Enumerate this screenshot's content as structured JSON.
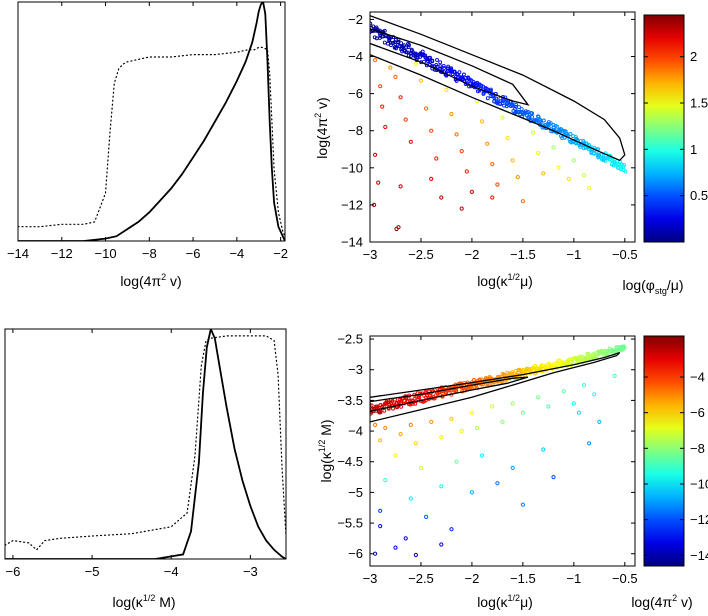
{
  "chart_data": [
    {
      "id": "p1",
      "type": "line",
      "xlabel": "log(4π² v)",
      "xlabel_parts": {
        "pre": "log(4π",
        "sup": "2",
        "post": " v)"
      },
      "xlim": [
        -14,
        -1.8
      ],
      "ylim": [
        0,
        1
      ],
      "xticks": [
        -14,
        -12,
        -10,
        -8,
        -6,
        -4,
        -2
      ],
      "yticks_shown": false,
      "series": [
        {
          "name": "solid",
          "style": "solid",
          "x": [
            -14,
            -11,
            -10,
            -9.5,
            -9,
            -8.5,
            -8,
            -7.5,
            -7,
            -6.5,
            -6,
            -5.5,
            -5,
            -4.5,
            -4,
            -3.6,
            -3.3,
            -3.1,
            -3.0,
            -2.9,
            -2.8,
            -2.7,
            -2.6,
            -2.5,
            -2.4,
            -2.3,
            -2.1,
            -1.9,
            -1.8
          ],
          "y": [
            0.0,
            0.0,
            0.01,
            0.02,
            0.05,
            0.08,
            0.12,
            0.17,
            0.22,
            0.28,
            0.35,
            0.42,
            0.5,
            0.58,
            0.67,
            0.75,
            0.83,
            0.91,
            0.96,
            0.99,
            1.0,
            0.95,
            0.75,
            0.5,
            0.3,
            0.16,
            0.06,
            0.02,
            0.0
          ]
        },
        {
          "name": "dotted",
          "style": "dotted",
          "x": [
            -14,
            -13,
            -12,
            -11,
            -10.5,
            -10,
            -9.8,
            -9.6,
            -9.4,
            -9.2,
            -9.0,
            -8.5,
            -8,
            -7,
            -6,
            -5,
            -4,
            -3.5,
            -3.2,
            -3.0,
            -2.8,
            -2.6,
            -2.5,
            -2.4,
            -2.3,
            -2.1,
            -1.9,
            -1.8
          ],
          "y": [
            0.06,
            0.06,
            0.07,
            0.07,
            0.08,
            0.2,
            0.45,
            0.66,
            0.72,
            0.74,
            0.75,
            0.76,
            0.77,
            0.77,
            0.78,
            0.78,
            0.79,
            0.8,
            0.8,
            0.81,
            0.81,
            0.8,
            0.7,
            0.5,
            0.3,
            0.12,
            0.04,
            0.02
          ]
        }
      ]
    },
    {
      "id": "p2",
      "type": "scatter",
      "xlabel": "log(κ^1/2 μ)",
      "xlabel_parts": {
        "pre": "log(κ",
        "sup": "1/2",
        "post": "μ)"
      },
      "ylabel": "log(4π² v)",
      "ylabel_parts": {
        "pre": "log(4π",
        "sup": "2",
        "post": " v)"
      },
      "xlim": [
        -3,
        -0.4
      ],
      "ylim": [
        -14,
        -1.6
      ],
      "xticks": [
        -3,
        -2.5,
        -2,
        -1.5,
        -1,
        -0.5
      ],
      "yticks": [
        -14,
        -12,
        -10,
        -8,
        -6,
        -4,
        -2
      ],
      "colorbar": {
        "label": "log(φ_stg/μ)",
        "label_parts": {
          "pre": "log(φ",
          "sub": "stg",
          "post": "/μ)"
        },
        "range": [
          0,
          2.45
        ],
        "ticks": [
          0.5,
          1,
          1.5,
          2
        ]
      },
      "band": {
        "slope": -3.0,
        "intercept": -11.5,
        "x_range": [
          -3,
          -0.5
        ],
        "spread": 0.35,
        "color_low": 0.05,
        "color_high": 0.9
      },
      "contours": [
        {
          "name": "outer",
          "x": [
            -3.0,
            -2.5,
            -2.0,
            -1.5,
            -1.0,
            -0.7,
            -0.55,
            -0.5,
            -0.55,
            -0.8,
            -1.2,
            -1.6,
            -2.0,
            -2.5,
            -3.0
          ],
          "y": [
            -1.8,
            -2.8,
            -3.9,
            -5.0,
            -6.4,
            -7.4,
            -8.4,
            -9.3,
            -9.6,
            -9.0,
            -8.0,
            -7.1,
            -6.2,
            -5.0,
            -3.9
          ]
        },
        {
          "name": "inner",
          "x": [
            -3.0,
            -2.5,
            -2.0,
            -1.6,
            -1.45,
            -1.6,
            -2.0,
            -2.5,
            -3.0
          ],
          "y": [
            -2.5,
            -3.4,
            -4.5,
            -5.5,
            -6.6,
            -6.4,
            -5.6,
            -4.3,
            -3.3
          ]
        }
      ],
      "scatter_points": [
        {
          "x": -2.95,
          "y": -4.2,
          "c": 1.9
        },
        {
          "x": -2.9,
          "y": -5.6,
          "c": 2.0
        },
        {
          "x": -2.88,
          "y": -6.7,
          "c": 2.1
        },
        {
          "x": -2.85,
          "y": -7.8,
          "c": 2.2
        },
        {
          "x": -2.95,
          "y": -9.3,
          "c": 2.3
        },
        {
          "x": -2.92,
          "y": -10.8,
          "c": 2.3
        },
        {
          "x": -2.96,
          "y": -12.0,
          "c": 2.4
        },
        {
          "x": -2.8,
          "y": -4.6,
          "c": 1.8
        },
        {
          "x": -2.75,
          "y": -5.1,
          "c": 1.9
        },
        {
          "x": -2.7,
          "y": -6.2,
          "c": 2.1
        },
        {
          "x": -2.65,
          "y": -7.4,
          "c": 2.0
        },
        {
          "x": -2.6,
          "y": -8.6,
          "c": 2.2
        },
        {
          "x": -2.7,
          "y": -11.0,
          "c": 2.3
        },
        {
          "x": -2.74,
          "y": -13.3,
          "c": 2.4
        },
        {
          "x": -2.72,
          "y": -13.2,
          "c": 2.4
        },
        {
          "x": -2.55,
          "y": -4.4,
          "c": 1.5
        },
        {
          "x": -2.5,
          "y": -5.3,
          "c": 1.7
        },
        {
          "x": -2.45,
          "y": -6.8,
          "c": 1.9
        },
        {
          "x": -2.4,
          "y": -8.0,
          "c": 2.0
        },
        {
          "x": -2.35,
          "y": -9.5,
          "c": 2.1
        },
        {
          "x": -2.4,
          "y": -10.6,
          "c": 2.2
        },
        {
          "x": -2.3,
          "y": -11.6,
          "c": 2.3
        },
        {
          "x": -2.25,
          "y": -5.8,
          "c": 1.6
        },
        {
          "x": -2.2,
          "y": -7.1,
          "c": 1.8
        },
        {
          "x": -2.15,
          "y": -8.2,
          "c": 1.9
        },
        {
          "x": -2.1,
          "y": -9.1,
          "c": 2.0
        },
        {
          "x": -2.05,
          "y": -10.2,
          "c": 2.1
        },
        {
          "x": -2.0,
          "y": -11.3,
          "c": 2.2
        },
        {
          "x": -2.1,
          "y": -12.2,
          "c": 2.3
        },
        {
          "x": -1.95,
          "y": -6.4,
          "c": 1.5
        },
        {
          "x": -1.9,
          "y": -7.5,
          "c": 1.7
        },
        {
          "x": -1.85,
          "y": -8.7,
          "c": 1.8
        },
        {
          "x": -1.8,
          "y": -9.8,
          "c": 1.9
        },
        {
          "x": -1.75,
          "y": -10.9,
          "c": 2.0
        },
        {
          "x": -1.8,
          "y": -11.6,
          "c": 2.1
        },
        {
          "x": -1.7,
          "y": -7.3,
          "c": 1.4
        },
        {
          "x": -1.65,
          "y": -8.4,
          "c": 1.6
        },
        {
          "x": -1.6,
          "y": -9.6,
          "c": 1.7
        },
        {
          "x": -1.55,
          "y": -10.5,
          "c": 1.8
        },
        {
          "x": -1.5,
          "y": -11.8,
          "c": 1.9
        },
        {
          "x": -1.4,
          "y": -8.1,
          "c": 1.4
        },
        {
          "x": -1.35,
          "y": -9.2,
          "c": 1.5
        },
        {
          "x": -1.3,
          "y": -10.3,
          "c": 1.7
        },
        {
          "x": -1.2,
          "y": -8.9,
          "c": 1.3
        },
        {
          "x": -1.15,
          "y": -10.0,
          "c": 1.5
        },
        {
          "x": -1.05,
          "y": -10.6,
          "c": 1.6
        },
        {
          "x": -1.0,
          "y": -9.6,
          "c": 1.3
        },
        {
          "x": -0.9,
          "y": -10.4,
          "c": 1.4
        },
        {
          "x": -0.85,
          "y": -11.1,
          "c": 1.5
        }
      ]
    },
    {
      "id": "p3",
      "type": "line",
      "xlabel": "log(κ^1/2 M)",
      "xlabel_parts": {
        "pre": "log(κ",
        "sup": "1/2",
        "post": " M)"
      },
      "xlim": [
        -6.1,
        -2.55
      ],
      "ylim": [
        0,
        1
      ],
      "xticks": [
        -6,
        -5,
        -4,
        -3
      ],
      "yticks_shown": false,
      "series": [
        {
          "name": "solid",
          "style": "solid",
          "x": [
            -6.1,
            -4.2,
            -3.85,
            -3.75,
            -3.65,
            -3.6,
            -3.55,
            -3.5,
            -3.45,
            -3.4,
            -3.3,
            -3.2,
            -3.1,
            -3.0,
            -2.9,
            -2.8,
            -2.7,
            -2.6,
            -2.55
          ],
          "y": [
            0,
            0,
            0.02,
            0.12,
            0.42,
            0.72,
            0.92,
            1.0,
            0.96,
            0.86,
            0.66,
            0.48,
            0.34,
            0.23,
            0.14,
            0.08,
            0.04,
            0.01,
            0
          ]
        },
        {
          "name": "dotted",
          "style": "dotted",
          "x": [
            -6.1,
            -6.0,
            -5.8,
            -5.7,
            -5.6,
            -5.4,
            -5.0,
            -4.5,
            -4.0,
            -3.8,
            -3.7,
            -3.62,
            -3.56,
            -3.5,
            -3.3,
            -3.0,
            -2.8,
            -2.7,
            -2.65,
            -2.6,
            -2.55
          ],
          "y": [
            0.06,
            0.08,
            0.07,
            0.04,
            0.08,
            0.09,
            0.1,
            0.11,
            0.14,
            0.2,
            0.45,
            0.84,
            0.95,
            0.96,
            0.97,
            0.97,
            0.97,
            0.95,
            0.8,
            0.4,
            0.1
          ]
        }
      ]
    },
    {
      "id": "p4",
      "type": "scatter",
      "xlabel": "log(κ^1/2 μ)",
      "xlabel_parts": {
        "pre": "log(κ",
        "sup": "1/2",
        "post": "μ)"
      },
      "ylabel": "log(κ^1/2 M)",
      "ylabel_parts": {
        "pre": "log(κ",
        "sup": "1/2",
        "post": " M)"
      },
      "xlim": [
        -3,
        -0.4
      ],
      "ylim": [
        -6.2,
        -2.45
      ],
      "xticks": [
        -3,
        -2.5,
        -2,
        -1.5,
        -1,
        -0.5
      ],
      "yticks": [
        -6,
        -5.5,
        -5,
        -4.5,
        -4,
        -3.5,
        -3,
        -2.5
      ],
      "colorbar": {
        "label": "log(4π² v)",
        "label_parts": {
          "pre": "log(4π",
          "sup": "2",
          "post": " v)"
        },
        "range": [
          -14.6,
          -1.7
        ],
        "ticks": [
          -14,
          -12,
          -10,
          -8,
          -6,
          -4
        ]
      },
      "band": {
        "slope": 0.4,
        "intercept": -2.45,
        "x_range": [
          -3,
          -0.5
        ],
        "spread": 0.09,
        "color_low": -2.5,
        "color_high": -8.5
      },
      "contours": [
        {
          "name": "outer",
          "x": [
            -3.0,
            -2.5,
            -2.0,
            -1.5,
            -1.0,
            -0.7,
            -0.55,
            -0.58,
            -0.8,
            -1.2,
            -1.6,
            -2.0,
            -2.5,
            -3.0
          ],
          "y": [
            -3.45,
            -3.33,
            -3.21,
            -3.08,
            -2.92,
            -2.8,
            -2.72,
            -2.77,
            -2.88,
            -3.05,
            -3.25,
            -3.45,
            -3.65,
            -3.85
          ]
        },
        {
          "name": "inner",
          "x": [
            -3.0,
            -2.5,
            -2.0,
            -1.6,
            -1.45,
            -1.65,
            -2.0,
            -2.5,
            -3.0
          ],
          "y": [
            -3.52,
            -3.4,
            -3.25,
            -3.14,
            -3.12,
            -3.22,
            -3.33,
            -3.5,
            -3.68
          ]
        }
      ],
      "scatter_points": [
        {
          "x": -2.95,
          "y": -3.9,
          "c": -4.8
        },
        {
          "x": -2.9,
          "y": -4.15,
          "c": -5.6
        },
        {
          "x": -2.85,
          "y": -3.95,
          "c": -5.0
        },
        {
          "x": -2.7,
          "y": -4.05,
          "c": -5.4
        },
        {
          "x": -2.6,
          "y": -3.9,
          "c": -4.9
        },
        {
          "x": -2.55,
          "y": -4.2,
          "c": -6.0
        },
        {
          "x": -2.4,
          "y": -3.85,
          "c": -5.2
        },
        {
          "x": -2.3,
          "y": -4.1,
          "c": -6.3
        },
        {
          "x": -2.2,
          "y": -3.8,
          "c": -5.8
        },
        {
          "x": -2.1,
          "y": -4.0,
          "c": -6.8
        },
        {
          "x": -2.0,
          "y": -3.7,
          "c": -6.6
        },
        {
          "x": -1.95,
          "y": -3.95,
          "c": -7.6
        },
        {
          "x": -1.8,
          "y": -3.6,
          "c": -7.2
        },
        {
          "x": -1.7,
          "y": -3.85,
          "c": -8.0
        },
        {
          "x": -1.6,
          "y": -3.55,
          "c": -7.7
        },
        {
          "x": -1.5,
          "y": -3.7,
          "c": -8.5
        },
        {
          "x": -1.35,
          "y": -3.45,
          "c": -8.2
        },
        {
          "x": -1.25,
          "y": -3.6,
          "c": -8.8
        },
        {
          "x": -1.1,
          "y": -3.35,
          "c": -8.6
        },
        {
          "x": -1.0,
          "y": -3.55,
          "c": -9.6
        },
        {
          "x": -0.95,
          "y": -3.7,
          "c": -10.2
        },
        {
          "x": -0.9,
          "y": -3.25,
          "c": -8.9
        },
        {
          "x": -0.8,
          "y": -3.4,
          "c": -9.4
        },
        {
          "x": -0.75,
          "y": -3.85,
          "c": -10.6
        },
        {
          "x": -1.3,
          "y": -4.3,
          "c": -10.4
        },
        {
          "x": -1.6,
          "y": -4.6,
          "c": -11.0
        },
        {
          "x": -1.9,
          "y": -4.4,
          "c": -9.8
        },
        {
          "x": -2.15,
          "y": -4.5,
          "c": -8.4
        },
        {
          "x": -2.5,
          "y": -4.6,
          "c": -7.3
        },
        {
          "x": -2.75,
          "y": -4.4,
          "c": -6.4
        },
        {
          "x": -2.3,
          "y": -4.9,
          "c": -9.6
        },
        {
          "x": -2.0,
          "y": -5.0,
          "c": -10.8
        },
        {
          "x": -1.75,
          "y": -4.85,
          "c": -11.6
        },
        {
          "x": -2.6,
          "y": -5.1,
          "c": -10.0
        },
        {
          "x": -2.85,
          "y": -4.8,
          "c": -9.2
        },
        {
          "x": -2.45,
          "y": -5.4,
          "c": -11.8
        },
        {
          "x": -2.9,
          "y": -5.3,
          "c": -12.3
        },
        {
          "x": -2.2,
          "y": -5.6,
          "c": -12.6
        },
        {
          "x": -1.5,
          "y": -5.2,
          "c": -11.4
        },
        {
          "x": -2.75,
          "y": -5.9,
          "c": -13.4
        },
        {
          "x": -2.55,
          "y": -6.02,
          "c": -14.0
        },
        {
          "x": -2.9,
          "y": -5.55,
          "c": -12.9
        },
        {
          "x": -2.3,
          "y": -5.85,
          "c": -13.1
        },
        {
          "x": -2.65,
          "y": -5.75,
          "c": -13.6
        },
        {
          "x": -2.95,
          "y": -6.0,
          "c": -14.2
        },
        {
          "x": -1.2,
          "y": -4.75,
          "c": -12.0
        },
        {
          "x": -0.85,
          "y": -4.2,
          "c": -11.2
        },
        {
          "x": -0.6,
          "y": -3.1,
          "c": -9.0
        }
      ]
    }
  ]
}
